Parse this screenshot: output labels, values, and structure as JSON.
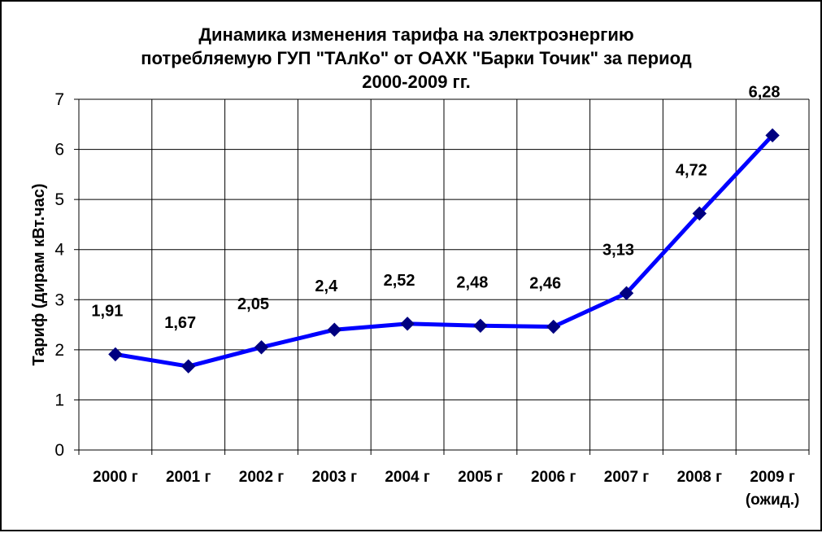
{
  "chart_data": {
    "type": "line",
    "title_lines": [
      "Динамика изменения тарифа на электроэнергию",
      "потребляемую ГУП \"ТАлКо\" от ОАХК \"Барки Точик\" за период",
      "2000-2009 гг."
    ],
    "ylabel": "Тариф (дирам кВт.час)",
    "xlabel": "",
    "ylim": [
      0,
      7
    ],
    "yticks": [
      0,
      1,
      2,
      3,
      4,
      5,
      6,
      7
    ],
    "grid": true,
    "legend": "none",
    "categories": [
      [
        "2000 г"
      ],
      [
        "2001 г"
      ],
      [
        "2002 г"
      ],
      [
        "2003 г"
      ],
      [
        "2004 г"
      ],
      [
        "2005 г"
      ],
      [
        "2006 г"
      ],
      [
        "2007 г"
      ],
      [
        "2008 г"
      ],
      [
        "2009 г",
        "(ожид.)"
      ]
    ],
    "series": [
      {
        "values": [
          1.91,
          1.67,
          2.05,
          2.4,
          2.52,
          2.48,
          2.46,
          3.13,
          4.72,
          6.28
        ],
        "labels": [
          "1,91",
          "1,67",
          "2,05",
          "2,4",
          "2,52",
          "2,48",
          "2,46",
          "3,13",
          "4,72",
          "6,28"
        ],
        "color": "#0000ff",
        "marker_color": "#000080"
      }
    ]
  }
}
